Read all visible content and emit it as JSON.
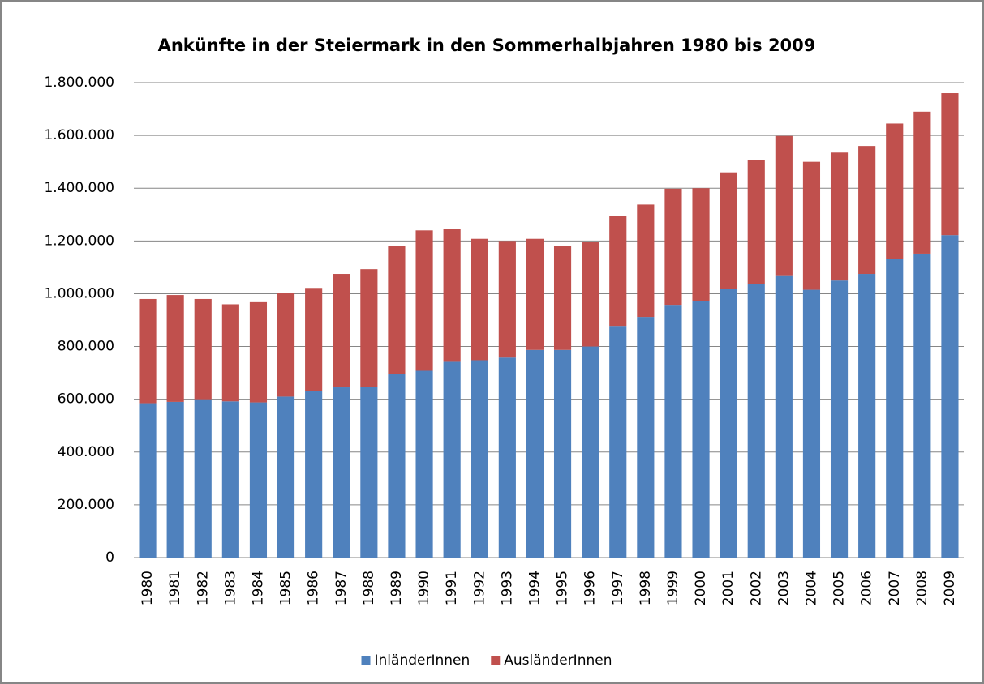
{
  "chart_data": {
    "type": "stacked-bar",
    "title": "Ankünfte in der Steiermark in den Sommerhalbjahren 1980 bis 2009",
    "categories": [
      "1980",
      "1981",
      "1982",
      "1983",
      "1984",
      "1985",
      "1986",
      "1987",
      "1988",
      "1989",
      "1990",
      "1991",
      "1992",
      "1993",
      "1994",
      "1995",
      "1996",
      "1997",
      "1998",
      "1999",
      "2000",
      "2001",
      "2002",
      "2003",
      "2004",
      "2005",
      "2006",
      "2007",
      "2008",
      "2009"
    ],
    "series": [
      {
        "name": "InländerInnen",
        "color": "#4f81bd",
        "values": [
          585000,
          590000,
          600000,
          592000,
          588000,
          610000,
          632000,
          645000,
          648000,
          695000,
          708000,
          742000,
          748000,
          758000,
          787000,
          787000,
          800000,
          878000,
          912000,
          958000,
          972000,
          1018000,
          1038000,
          1070000,
          1015000,
          1050000,
          1075000,
          1133000,
          1152000,
          1222000
        ]
      },
      {
        "name": "AusländerInnen",
        "color": "#c0504d",
        "values": [
          395000,
          405000,
          380000,
          368000,
          380000,
          392000,
          390000,
          430000,
          445000,
          485000,
          532000,
          503000,
          460000,
          442000,
          421000,
          393000,
          395000,
          417000,
          426000,
          440000,
          428000,
          442000,
          470000,
          528000,
          485000,
          485000,
          485000,
          512000,
          538000,
          538000
        ]
      }
    ],
    "ylim": [
      0,
      1800000
    ],
    "yticks": [
      0,
      {
        "value": 200000,
        "label": "200.000"
      },
      {
        "value": 400000,
        "label": "400.000"
      },
      {
        "value": 600000,
        "label": "600.000"
      },
      {
        "value": 800000,
        "label": "800.000"
      },
      {
        "value": 1000000,
        "label": "1.000.000"
      },
      {
        "value": 1200000,
        "label": "1.200.000"
      },
      {
        "value": 1400000,
        "label": "1.400.000"
      },
      {
        "value": 1600000,
        "label": "1.600.000"
      },
      {
        "value": 1800000,
        "label": "1.800.000"
      }
    ],
    "grid": true,
    "legend": "bottom"
  }
}
